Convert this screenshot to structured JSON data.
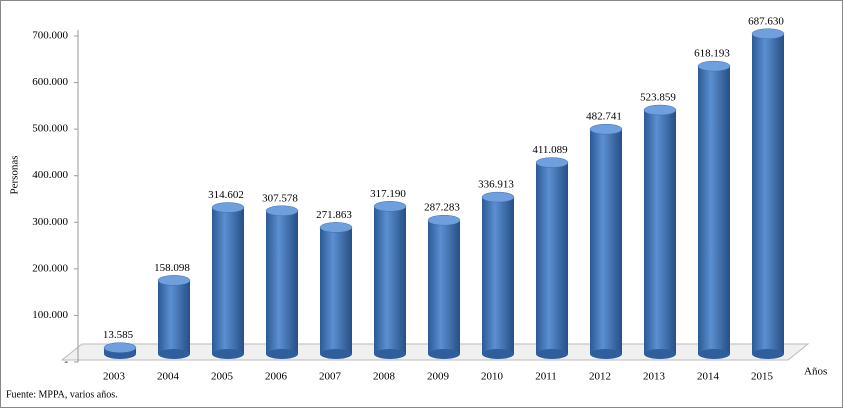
{
  "chart_data": {
    "type": "bar",
    "y_label": "Personas",
    "x_label": "Años",
    "source": "Fuente: MPPA, varios años.",
    "categories": [
      "2003",
      "2004",
      "2005",
      "2006",
      "2007",
      "2008",
      "2009",
      "2010",
      "2011",
      "2012",
      "2013",
      "2014",
      "2015"
    ],
    "values": [
      13585,
      158098,
      314602,
      307578,
      271863,
      317190,
      287283,
      336913,
      411089,
      482741,
      523859,
      618193,
      687630
    ],
    "value_labels": [
      "13.585",
      "158.098",
      "314.602",
      "307.578",
      "271.863",
      "317.190",
      "287.283",
      "336.913",
      "411.089",
      "482.741",
      "523.859",
      "618.193",
      "687.630"
    ],
    "color": "#4a7ebb",
    "ylim": [
      0,
      700000
    ],
    "yticks": [
      {
        "value": 0,
        "label": "-"
      },
      {
        "value": 100000,
        "label": "100.000"
      },
      {
        "value": 200000,
        "label": "200.000"
      },
      {
        "value": 300000,
        "label": "300.000"
      },
      {
        "value": 400000,
        "label": "400.000"
      },
      {
        "value": 500000,
        "label": "500.000"
      },
      {
        "value": 600000,
        "label": "600.000"
      },
      {
        "value": 700000,
        "label": "700.000"
      }
    ]
  }
}
